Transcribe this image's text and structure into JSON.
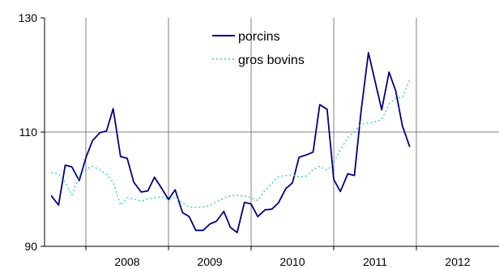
{
  "chart_data": {
    "type": "line",
    "title": "",
    "xlabel": "",
    "ylabel": "",
    "ylim": [
      90,
      130
    ],
    "yticks": [
      90,
      110,
      130
    ],
    "xlim": [
      2007.5,
      2013.0
    ],
    "year_labels": [
      "2008",
      "2009",
      "2010",
      "2011",
      "2012"
    ],
    "grid": "vertical at year boundaries; horizontal at y-ticks",
    "legend": {
      "position": "top-center"
    },
    "series": [
      {
        "name": "porcins",
        "color": "#000080",
        "style": "solid",
        "x": [
          2007.58,
          2007.67,
          2007.75,
          2007.83,
          2007.92,
          2008.0,
          2008.08,
          2008.17,
          2008.25,
          2008.33,
          2008.42,
          2008.5,
          2008.58,
          2008.67,
          2008.75,
          2008.83,
          2008.92,
          2009.0,
          2009.08,
          2009.17,
          2009.25,
          2009.33,
          2009.42,
          2009.5,
          2009.58,
          2009.67,
          2009.75,
          2009.83,
          2009.92,
          2010.0,
          2010.08,
          2010.17,
          2010.25,
          2010.33,
          2010.42,
          2010.5,
          2010.58,
          2010.67,
          2010.75,
          2010.83,
          2010.92,
          2011.0,
          2011.08,
          2011.17,
          2011.25,
          2011.33,
          2011.42,
          2011.5,
          2011.58,
          2011.67,
          2011.75,
          2011.83,
          2011.92,
          2012.0,
          2012.08,
          2012.17
        ],
        "y": [
          98.9,
          97.2,
          104.2,
          103.9,
          101.5,
          105.5,
          108.5,
          109.9,
          110.2,
          114.1,
          105.7,
          105.4,
          101.2,
          99.5,
          99.7,
          102.1,
          100.1,
          98.2,
          99.9,
          95.9,
          95.2,
          92.8,
          92.8,
          93.9,
          94.4,
          96.1,
          93.3,
          92.4,
          97.7,
          97.4,
          95.2,
          96.4,
          96.5,
          97.6,
          100.1,
          101.1,
          105.6,
          106.0,
          106.5,
          114.8,
          114.0,
          101.7,
          99.6,
          102.7,
          102.4,
          113.6,
          123.9,
          118.9,
          113.9,
          120.5,
          117.2,
          111.1,
          107.4,
          null,
          null,
          null
        ]
      },
      {
        "name": "gros bovins",
        "color": "#33cccc",
        "style": "dotted",
        "x": [
          2007.58,
          2007.67,
          2007.75,
          2007.83,
          2007.92,
          2008.0,
          2008.08,
          2008.17,
          2008.25,
          2008.33,
          2008.42,
          2008.5,
          2008.58,
          2008.67,
          2008.75,
          2008.83,
          2008.92,
          2009.0,
          2009.08,
          2009.17,
          2009.25,
          2009.33,
          2009.42,
          2009.5,
          2009.58,
          2009.67,
          2009.75,
          2009.83,
          2009.92,
          2010.0,
          2010.08,
          2010.17,
          2010.25,
          2010.33,
          2010.42,
          2010.5,
          2010.58,
          2010.67,
          2010.75,
          2010.83,
          2010.92,
          2011.0,
          2011.08,
          2011.17,
          2011.25,
          2011.33,
          2011.42,
          2011.5,
          2011.58,
          2011.67,
          2011.75,
          2011.83,
          2011.92
        ],
        "y": [
          102.9,
          102.7,
          101.2,
          99.0,
          102.3,
          103.5,
          104.0,
          103.4,
          102.6,
          101.2,
          97.2,
          98.5,
          98.3,
          97.9,
          98.3,
          98.5,
          98.7,
          98.2,
          98.6,
          97.6,
          96.9,
          96.8,
          96.9,
          97.1,
          97.8,
          98.4,
          98.9,
          98.9,
          98.8,
          98.5,
          98.0,
          99.8,
          101.0,
          102.2,
          102.4,
          102.5,
          102.2,
          102.3,
          103.4,
          104.0,
          103.3,
          104.7,
          106.9,
          109.0,
          110.1,
          111.3,
          111.6,
          111.8,
          112.2,
          114.9,
          115.9,
          116.1,
          119.1
        ]
      }
    ]
  }
}
